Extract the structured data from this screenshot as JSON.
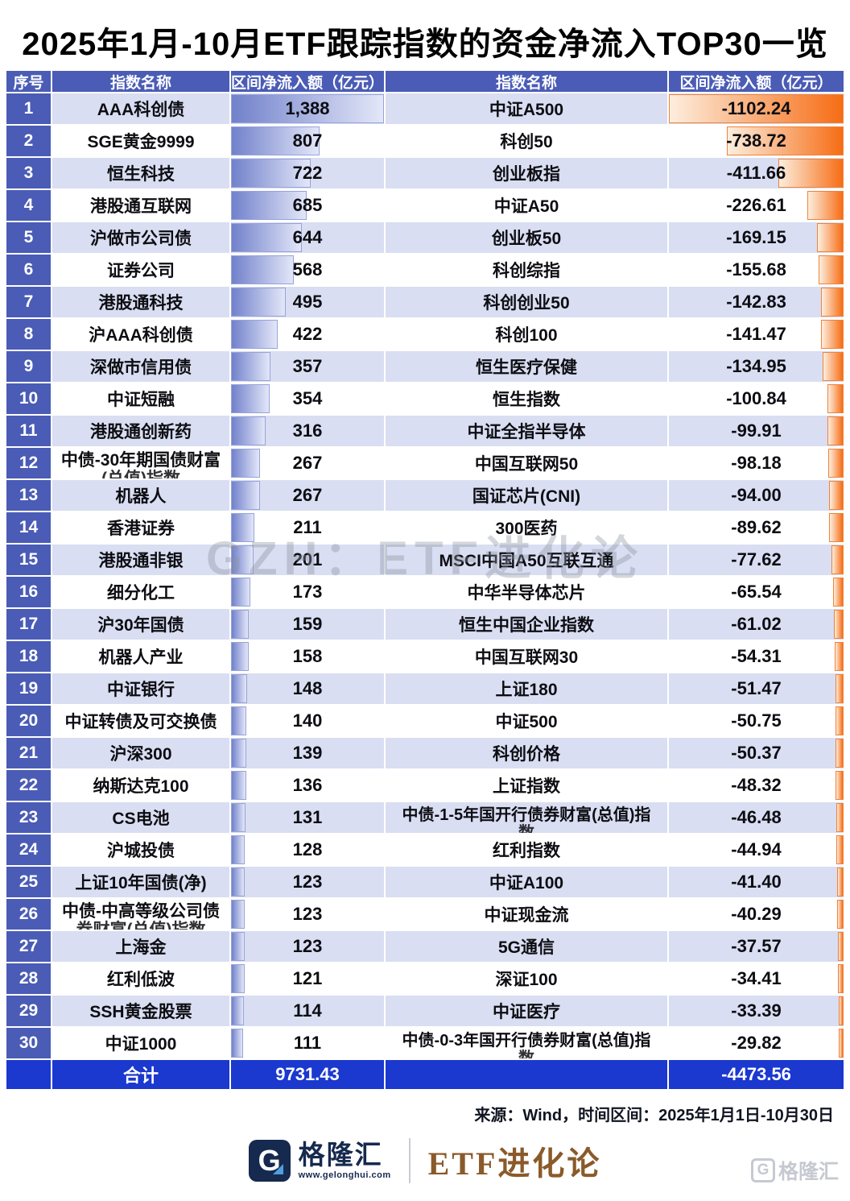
{
  "title": "2025年1月-10月ETF跟踪指数的资金净流入TOP30一览",
  "chart_data": {
    "type": "table",
    "title": "2025年1月-10月ETF跟踪指数的资金净流入TOP30一览",
    "columns": [
      "序号",
      "指数名称",
      "区间净流入额（亿元）",
      "指数名称",
      "区间净流入额（亿元）"
    ],
    "inflow_max": 1388,
    "outflow_max": 1102.24,
    "inflow": [
      {
        "rank": "1",
        "name": "AAA科创债",
        "value": "1,388",
        "num": 1388
      },
      {
        "rank": "2",
        "name": "SGE黄金9999",
        "value": "807",
        "num": 807
      },
      {
        "rank": "3",
        "name": "恒生科技",
        "value": "722",
        "num": 722
      },
      {
        "rank": "4",
        "name": "港股通互联网",
        "value": "685",
        "num": 685
      },
      {
        "rank": "5",
        "name": "沪做市公司债",
        "value": "644",
        "num": 644
      },
      {
        "rank": "6",
        "name": "证券公司",
        "value": "568",
        "num": 568
      },
      {
        "rank": "7",
        "name": "港股通科技",
        "value": "495",
        "num": 495
      },
      {
        "rank": "8",
        "name": "沪AAA科创债",
        "value": "422",
        "num": 422
      },
      {
        "rank": "9",
        "name": "深做市信用债",
        "value": "357",
        "num": 357
      },
      {
        "rank": "10",
        "name": "中证短融",
        "value": "354",
        "num": 354
      },
      {
        "rank": "11",
        "name": "港股通创新药",
        "value": "316",
        "num": 316
      },
      {
        "rank": "12",
        "name": "中债-30年期国债财富",
        "name2": "(总值)指数",
        "value": "267",
        "num": 267
      },
      {
        "rank": "13",
        "name": "机器人",
        "value": "267",
        "num": 267
      },
      {
        "rank": "14",
        "name": "香港证券",
        "value": "211",
        "num": 211
      },
      {
        "rank": "15",
        "name": "港股通非银",
        "value": "201",
        "num": 201
      },
      {
        "rank": "16",
        "name": "细分化工",
        "value": "173",
        "num": 173
      },
      {
        "rank": "17",
        "name": "沪30年国债",
        "value": "159",
        "num": 159
      },
      {
        "rank": "18",
        "name": "机器人产业",
        "value": "158",
        "num": 158
      },
      {
        "rank": "19",
        "name": "中证银行",
        "value": "148",
        "num": 148
      },
      {
        "rank": "20",
        "name": "中证转债及可交换债",
        "value": "140",
        "num": 140
      },
      {
        "rank": "21",
        "name": "沪深300",
        "value": "139",
        "num": 139
      },
      {
        "rank": "22",
        "name": "纳斯达克100",
        "value": "136",
        "num": 136
      },
      {
        "rank": "23",
        "name": "CS电池",
        "value": "131",
        "num": 131
      },
      {
        "rank": "24",
        "name": "沪城投债",
        "value": "128",
        "num": 128
      },
      {
        "rank": "25",
        "name": "上证10年国债(净)",
        "value": "123",
        "num": 123
      },
      {
        "rank": "26",
        "name": "中债-中高等级公司债",
        "name2": "券财富(总值)指数",
        "value": "123",
        "num": 123
      },
      {
        "rank": "27",
        "name": "上海金",
        "value": "123",
        "num": 123
      },
      {
        "rank": "28",
        "name": "红利低波",
        "value": "121",
        "num": 121
      },
      {
        "rank": "29",
        "name": "SSH黄金股票",
        "value": "114",
        "num": 114
      },
      {
        "rank": "30",
        "name": "中证1000",
        "value": "111",
        "num": 111
      }
    ],
    "outflow": [
      {
        "name": "中证A500",
        "value": "-1102.24",
        "num": 1102.24
      },
      {
        "name": "科创50",
        "value": "-738.72",
        "num": 738.72
      },
      {
        "name": "创业板指",
        "value": "-411.66",
        "num": 411.66
      },
      {
        "name": "中证A50",
        "value": "-226.61",
        "num": 226.61
      },
      {
        "name": "创业板50",
        "value": "-169.15",
        "num": 169.15
      },
      {
        "name": "科创综指",
        "value": "-155.68",
        "num": 155.68
      },
      {
        "name": "科创创业50",
        "value": "-142.83",
        "num": 142.83
      },
      {
        "name": "科创100",
        "value": "-141.47",
        "num": 141.47
      },
      {
        "name": "恒生医疗保健",
        "value": "-134.95",
        "num": 134.95
      },
      {
        "name": "恒生指数",
        "value": "-100.84",
        "num": 100.84
      },
      {
        "name": "中证全指半导体",
        "value": "-99.91",
        "num": 99.91
      },
      {
        "name": "中国互联网50",
        "value": "-98.18",
        "num": 98.18
      },
      {
        "name": "国证芯片(CNI)",
        "value": "-94.00",
        "num": 94.0
      },
      {
        "name": "300医药",
        "value": "-89.62",
        "num": 89.62
      },
      {
        "name": "MSCI中国A50互联互通",
        "value": "-77.62",
        "num": 77.62
      },
      {
        "name": "中华半导体芯片",
        "value": "-65.54",
        "num": 65.54
      },
      {
        "name": "恒生中国企业指数",
        "value": "-61.02",
        "num": 61.02
      },
      {
        "name": "中国互联网30",
        "value": "-54.31",
        "num": 54.31
      },
      {
        "name": "上证180",
        "value": "-51.47",
        "num": 51.47
      },
      {
        "name": "中证500",
        "value": "-50.75",
        "num": 50.75
      },
      {
        "name": "科创价格",
        "value": "-50.37",
        "num": 50.37
      },
      {
        "name": "上证指数",
        "value": "-48.32",
        "num": 48.32
      },
      {
        "name": "中债-1-5年国开行债券财富(总值)指",
        "name2": "数",
        "value": "-46.48",
        "num": 46.48
      },
      {
        "name": "红利指数",
        "value": "-44.94",
        "num": 44.94
      },
      {
        "name": "中证A100",
        "value": "-41.40",
        "num": 41.4
      },
      {
        "name": "中证现金流",
        "value": "-40.29",
        "num": 40.29
      },
      {
        "name": "5G通信",
        "value": "-37.57",
        "num": 37.57
      },
      {
        "name": "深证100",
        "value": "-34.41",
        "num": 34.41
      },
      {
        "name": "中证医疗",
        "value": "-33.39",
        "num": 33.39
      },
      {
        "name": "中债-0-3年国开行债券财富(总值)指",
        "name2": "数",
        "value": "-29.82",
        "num": 29.82
      }
    ],
    "total": {
      "label": "合计",
      "inflow": "9731.43",
      "outflow": "-4473.56"
    }
  },
  "header": {
    "rank": "序号",
    "name": "指数名称",
    "value": "区间净流入额（亿元）"
  },
  "source": "来源：Wind，时间区间：2025年1月1日-10月30日",
  "watermark": {
    "center": "GZH：ETF进化论",
    "corner": "格隆汇"
  },
  "footer": {
    "logo_letter": "G",
    "brand": "格隆汇",
    "brand_url": "www.gelonghui.com",
    "account": "ETF进化论"
  },
  "colors": {
    "header_blue": "#4a5cb5",
    "total_blue": "#1b38cf",
    "row_alt": "#d9def2",
    "bar_blue": "#7181cb",
    "bar_orange": "#f66d15"
  }
}
